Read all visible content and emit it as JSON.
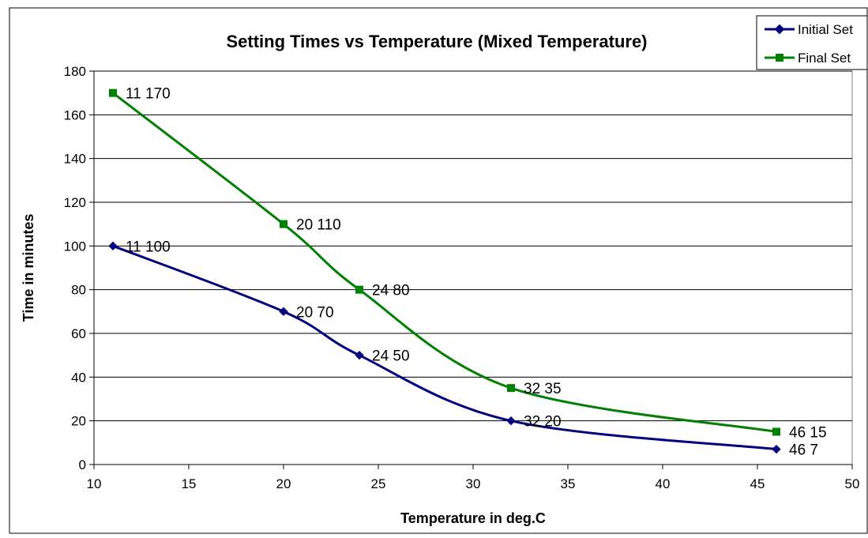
{
  "chart_data": {
    "type": "line",
    "title": "Setting Times vs Temperature (Mixed Temperature)",
    "xlabel": "Temperature in deg.C",
    "ylabel": "Time in minutes",
    "xlim": [
      10,
      50
    ],
    "ylim": [
      0,
      180
    ],
    "x_ticks": [
      10,
      15,
      20,
      25,
      30,
      35,
      40,
      45,
      50
    ],
    "y_ticks": [
      0,
      20,
      40,
      60,
      80,
      100,
      120,
      140,
      160,
      180
    ],
    "grid": "horizontal",
    "legend_position": "top-right",
    "series": [
      {
        "name": "Initial Set",
        "color": "#000080",
        "marker": "diamond",
        "x": [
          11,
          20,
          24,
          32,
          46
        ],
        "values": [
          100,
          70,
          50,
          20,
          7
        ],
        "labels": [
          "11 100",
          "20 70",
          "24 50",
          "32 20",
          "46 7"
        ]
      },
      {
        "name": "Final Set",
        "color": "#008000",
        "marker": "square",
        "x": [
          11,
          20,
          24,
          32,
          46
        ],
        "values": [
          170,
          110,
          80,
          35,
          15
        ],
        "labels": [
          "11 170",
          "20 110",
          "24 80",
          "32 35",
          "46 15"
        ]
      }
    ]
  }
}
